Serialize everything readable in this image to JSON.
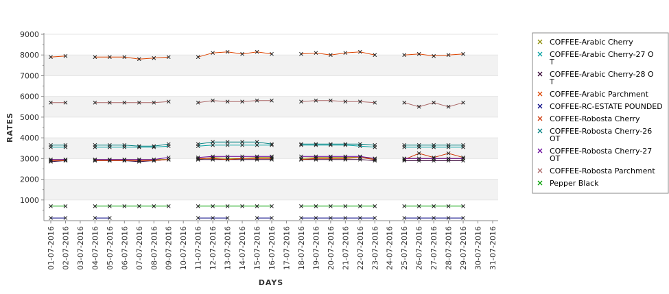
{
  "chart_data": {
    "type": "line",
    "title": "",
    "xlabel": "DAYS",
    "ylabel": "RATES",
    "ylim": [
      0,
      9000
    ],
    "yticks": [
      "1000",
      "2000",
      "3000",
      "4000",
      "5000",
      "6000",
      "7000",
      "8000",
      "9000"
    ],
    "grid": "alternating horizontal bands",
    "legend_position": "right",
    "categories": [
      "01-07-2016",
      "02-07-2016",
      "03-07-2016",
      "04-07-2016",
      "05-07-2016",
      "06-07-2016",
      "07-07-2016",
      "08-07-2016",
      "09-07-2016",
      "10-07-2016",
      "11-07-2016",
      "12-07-2016",
      "13-07-2016",
      "14-07-2016",
      "15-07-2016",
      "16-07-2016",
      "17-07-2016",
      "18-07-2016",
      "19-07-2016",
      "20-07-2016",
      "21-07-2016",
      "22-07-2016",
      "23-07-2016",
      "24-07-2016",
      "25-07-2016",
      "26-07-2016",
      "27-07-2016",
      "28-07-2016",
      "29-07-2016",
      "30-07-2016",
      "31-07-2016"
    ],
    "series": [
      {
        "name": "COFFEE-Arabic Cherry",
        "color": "#8c8c00",
        "values": [
          2950,
          2950,
          null,
          2950,
          2950,
          2950,
          2950,
          2950,
          2950,
          null,
          2950,
          3050,
          3000,
          3000,
          3050,
          3050,
          null,
          3000,
          3050,
          3050,
          3050,
          3050,
          3000,
          null,
          3000,
          3000,
          3000,
          3000,
          3000,
          null,
          null
        ]
      },
      {
        "name": "COFFEE-Arabic Cherry-27 O\nT",
        "color": "#00a0a0",
        "values": [
          3550,
          3550,
          null,
          3550,
          3550,
          3550,
          3550,
          3550,
          3600,
          null,
          3600,
          3650,
          3650,
          3650,
          3650,
          3650,
          null,
          3650,
          3650,
          3650,
          3650,
          3600,
          3550,
          null,
          3550,
          3550,
          3550,
          3550,
          3550,
          null,
          null
        ]
      },
      {
        "name": "COFFEE-Arabic Cherry-28 O\nT",
        "color": "#330033",
        "values": [
          2850,
          2900,
          null,
          2900,
          2900,
          2900,
          2850,
          2900,
          2950,
          null,
          2950,
          2950,
          2950,
          2950,
          2950,
          2950,
          null,
          2950,
          2950,
          2950,
          2950,
          2950,
          2900,
          null,
          2900,
          2900,
          2900,
          2900,
          2900,
          null,
          null
        ]
      },
      {
        "name": "COFFEE-Arabic Parchment",
        "color": "#dd4400",
        "values": [
          7900,
          7950,
          null,
          7900,
          7900,
          7900,
          7800,
          7850,
          7900,
          null,
          7900,
          8100,
          8150,
          8050,
          8150,
          8050,
          null,
          8050,
          8100,
          8000,
          8100,
          8150,
          8000,
          null,
          8000,
          8050,
          7950,
          8000,
          8050,
          null,
          null
        ]
      },
      {
        "name": "COFFEE-RC-ESTATE POUNDED",
        "color": "#000080",
        "values": [
          130,
          130,
          null,
          130,
          130,
          null,
          null,
          null,
          null,
          null,
          130,
          130,
          130,
          null,
          130,
          130,
          null,
          130,
          130,
          130,
          130,
          130,
          130,
          null,
          130,
          130,
          130,
          130,
          130,
          null,
          null
        ]
      },
      {
        "name": "COFFEE-Robosta Cherry",
        "color": "#cc3300",
        "values": [
          2900,
          2900,
          null,
          2900,
          2900,
          2900,
          2900,
          2900,
          2950,
          null,
          3000,
          3000,
          2950,
          3000,
          3000,
          3000,
          null,
          2950,
          3000,
          3000,
          3000,
          3050,
          2950,
          null,
          2950,
          3250,
          3050,
          3250,
          3050,
          null,
          null
        ]
      },
      {
        "name": "COFFEE-Robosta Cherry-26\nOT",
        "color": "#008080",
        "values": [
          3650,
          3650,
          null,
          3650,
          3650,
          3650,
          3600,
          3600,
          3700,
          null,
          3700,
          3800,
          3800,
          3800,
          3800,
          3700,
          null,
          3700,
          3700,
          3700,
          3700,
          3700,
          3650,
          null,
          3650,
          3650,
          3650,
          3650,
          3650,
          null,
          null
        ]
      },
      {
        "name": "COFFEE-Robosta Cherry-27\nOT",
        "color": "#660099",
        "values": [
          2950,
          2950,
          null,
          2950,
          2950,
          2950,
          2950,
          2950,
          3050,
          null,
          3050,
          3100,
          3100,
          3100,
          3100,
          3100,
          null,
          3100,
          3100,
          3100,
          3100,
          3100,
          3000,
          null,
          3000,
          3000,
          3000,
          3000,
          3000,
          null,
          null
        ]
      },
      {
        "name": "COFFEE-Robosta Parchment",
        "color": "#aa6666",
        "values": [
          5700,
          5700,
          null,
          5700,
          5700,
          5700,
          5700,
          5700,
          5750,
          null,
          5700,
          5800,
          5750,
          5750,
          5800,
          5800,
          null,
          5750,
          5800,
          5800,
          5750,
          5750,
          5700,
          null,
          5700,
          5500,
          5700,
          5500,
          5700,
          null,
          null
        ]
      },
      {
        "name": "Pepper Black",
        "color": "#00a000",
        "values": [
          700,
          700,
          null,
          700,
          700,
          700,
          700,
          700,
          700,
          null,
          700,
          700,
          700,
          700,
          700,
          700,
          null,
          700,
          700,
          700,
          700,
          700,
          700,
          null,
          700,
          700,
          700,
          700,
          700,
          null,
          null
        ]
      }
    ]
  }
}
